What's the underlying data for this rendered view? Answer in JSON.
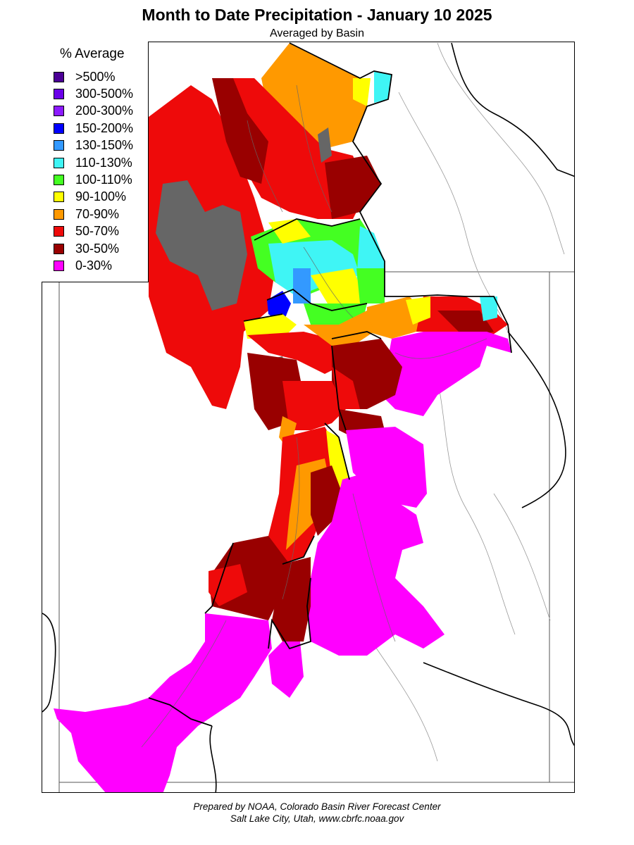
{
  "header": {
    "title": "Month to Date Precipitation - January 10 2025",
    "subtitle": "Averaged by Basin"
  },
  "legend": {
    "title": "% Average",
    "items": [
      {
        "label": ">500%",
        "color": "#4b0096"
      },
      {
        "label": "300-500%",
        "color": "#6a00e8"
      },
      {
        "label": "200-300%",
        "color": "#8c1aff"
      },
      {
        "label": "150-200%",
        "color": "#0000ff"
      },
      {
        "label": "130-150%",
        "color": "#3399ff"
      },
      {
        "label": "110-130%",
        "color": "#3ff5f5"
      },
      {
        "label": "100-110%",
        "color": "#44ff22"
      },
      {
        "label": "90-100%",
        "color": "#ffff00"
      },
      {
        "label": "70-90%",
        "color": "#ff9900"
      },
      {
        "label": "50-70%",
        "color": "#ee0a0a"
      },
      {
        "label": "30-50%",
        "color": "#990000"
      },
      {
        "label": "0-30%",
        "color": "#ff00ff"
      }
    ]
  },
  "map": {
    "no_data_color": "#666666"
  },
  "footer": {
    "line1": "Prepared by NOAA, Colorado Basin River Forecast Center",
    "line2": "Salt Lake City, Utah, www.cbrfc.noaa.gov"
  }
}
